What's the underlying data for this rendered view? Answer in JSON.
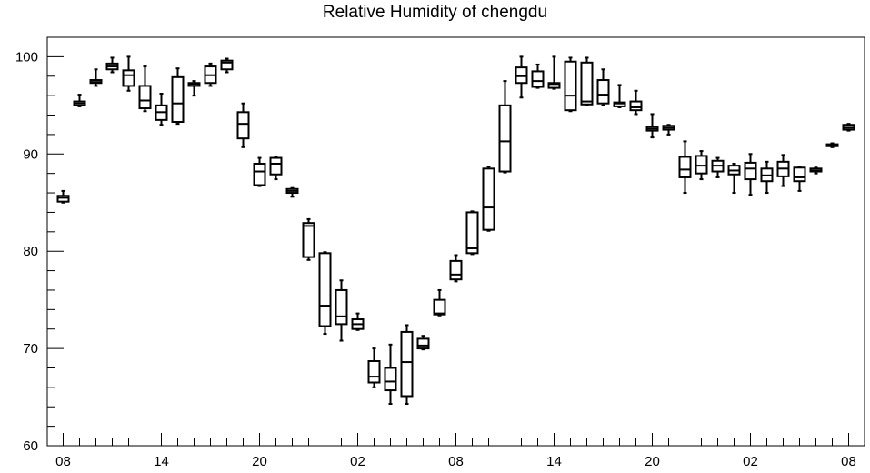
{
  "chart_data": {
    "type": "boxplot",
    "title": "Relative Humidity of chengdu",
    "xlabel": "",
    "ylabel": "",
    "ylim": [
      60,
      102
    ],
    "y_ticks": [
      60,
      70,
      80,
      90,
      100
    ],
    "x_ticks": [
      {
        "index": 0,
        "label": "08"
      },
      {
        "index": 6,
        "label": "14"
      },
      {
        "index": 12,
        "label": "20"
      },
      {
        "index": 18,
        "label": "02"
      },
      {
        "index": 24,
        "label": "08"
      },
      {
        "index": 30,
        "label": "14"
      },
      {
        "index": 36,
        "label": "20"
      },
      {
        "index": 42,
        "label": "02"
      },
      {
        "index": 48,
        "label": "08"
      }
    ],
    "grid": false,
    "boxes": [
      {
        "i": 0,
        "min": 85.0,
        "q1": 85.1,
        "median": 85.5,
        "q3": 85.7,
        "max": 86.2
      },
      {
        "i": 1,
        "min": 94.9,
        "q1": 95.0,
        "median": 95.2,
        "q3": 95.4,
        "max": 96.1
      },
      {
        "i": 2,
        "min": 97.0,
        "q1": 97.3,
        "median": 97.4,
        "q3": 97.6,
        "max": 98.7
      },
      {
        "i": 3,
        "min": 98.4,
        "q1": 98.7,
        "median": 99.0,
        "q3": 99.3,
        "max": 99.9
      },
      {
        "i": 4,
        "min": 96.5,
        "q1": 97.0,
        "median": 98.1,
        "q3": 98.6,
        "max": 100.0
      },
      {
        "i": 5,
        "min": 94.4,
        "q1": 94.7,
        "median": 95.5,
        "q3": 97.0,
        "max": 99.0
      },
      {
        "i": 6,
        "min": 93.0,
        "q1": 93.5,
        "median": 94.3,
        "q3": 95.0,
        "max": 96.2
      },
      {
        "i": 7,
        "min": 93.1,
        "q1": 93.3,
        "median": 95.2,
        "q3": 97.9,
        "max": 98.8
      },
      {
        "i": 8,
        "min": 96.0,
        "q1": 97.0,
        "median": 97.2,
        "q3": 97.3,
        "max": 97.5
      },
      {
        "i": 9,
        "min": 97.0,
        "q1": 97.3,
        "median": 98.1,
        "q3": 99.0,
        "max": 99.3
      },
      {
        "i": 10,
        "min": 98.4,
        "q1": 98.7,
        "median": 99.4,
        "q3": 99.6,
        "max": 99.8
      },
      {
        "i": 11,
        "min": 90.7,
        "q1": 91.6,
        "median": 93.1,
        "q3": 94.3,
        "max": 95.2
      },
      {
        "i": 12,
        "min": 86.7,
        "q1": 86.8,
        "median": 88.2,
        "q3": 89.0,
        "max": 89.6
      },
      {
        "i": 13,
        "min": 87.4,
        "q1": 87.9,
        "median": 89.0,
        "q3": 89.6,
        "max": 89.7
      },
      {
        "i": 14,
        "min": 85.6,
        "q1": 86.0,
        "median": 86.2,
        "q3": 86.4,
        "max": 86.5
      },
      {
        "i": 15,
        "min": 79.1,
        "q1": 79.4,
        "median": 82.6,
        "q3": 82.9,
        "max": 83.3
      },
      {
        "i": 16,
        "min": 71.5,
        "q1": 72.3,
        "median": 74.4,
        "q3": 79.8,
        "max": 79.9
      },
      {
        "i": 17,
        "min": 70.8,
        "q1": 72.5,
        "median": 73.3,
        "q3": 76.0,
        "max": 77.0
      },
      {
        "i": 18,
        "min": 71.9,
        "q1": 72.0,
        "median": 72.5,
        "q3": 73.0,
        "max": 73.6
      },
      {
        "i": 19,
        "min": 66.0,
        "q1": 66.5,
        "median": 67.1,
        "q3": 68.7,
        "max": 70.0
      },
      {
        "i": 20,
        "min": 64.3,
        "q1": 65.7,
        "median": 66.6,
        "q3": 68.0,
        "max": 70.4
      },
      {
        "i": 21,
        "min": 64.3,
        "q1": 65.1,
        "median": 68.6,
        "q3": 71.7,
        "max": 72.4
      },
      {
        "i": 22,
        "min": 69.9,
        "q1": 70.0,
        "median": 70.3,
        "q3": 71.0,
        "max": 71.3
      },
      {
        "i": 23,
        "min": 73.4,
        "q1": 73.5,
        "median": 73.6,
        "q3": 75.0,
        "max": 76.0
      },
      {
        "i": 24,
        "min": 76.9,
        "q1": 77.1,
        "median": 77.6,
        "q3": 79.0,
        "max": 79.6
      },
      {
        "i": 25,
        "min": 79.7,
        "q1": 79.8,
        "median": 80.3,
        "q3": 84.0,
        "max": 84.1
      },
      {
        "i": 26,
        "min": 82.1,
        "q1": 82.2,
        "median": 84.5,
        "q3": 88.5,
        "max": 88.7
      },
      {
        "i": 27,
        "min": 88.1,
        "q1": 88.2,
        "median": 91.3,
        "q3": 95.0,
        "max": 97.5
      },
      {
        "i": 28,
        "min": 95.8,
        "q1": 97.3,
        "median": 98.0,
        "q3": 98.9,
        "max": 100.0
      },
      {
        "i": 29,
        "min": 96.8,
        "q1": 96.9,
        "median": 97.5,
        "q3": 98.5,
        "max": 99.2
      },
      {
        "i": 30,
        "min": 96.7,
        "q1": 96.8,
        "median": 97.2,
        "q3": 97.3,
        "max": 100.0
      },
      {
        "i": 31,
        "min": 94.4,
        "q1": 94.5,
        "median": 96.0,
        "q3": 99.5,
        "max": 99.9
      },
      {
        "i": 32,
        "min": 95.0,
        "q1": 95.1,
        "median": 95.4,
        "q3": 99.4,
        "max": 99.9
      },
      {
        "i": 33,
        "min": 95.0,
        "q1": 95.2,
        "median": 96.1,
        "q3": 97.6,
        "max": 98.7
      },
      {
        "i": 34,
        "min": 94.8,
        "q1": 94.9,
        "median": 95.2,
        "q3": 95.3,
        "max": 97.1
      },
      {
        "i": 35,
        "min": 94.1,
        "q1": 94.5,
        "median": 94.8,
        "q3": 95.4,
        "max": 96.5
      },
      {
        "i": 36,
        "min": 91.7,
        "q1": 92.4,
        "median": 92.6,
        "q3": 92.8,
        "max": 94.1
      },
      {
        "i": 37,
        "min": 92.0,
        "q1": 92.5,
        "median": 92.7,
        "q3": 92.9,
        "max": 93.0
      },
      {
        "i": 38,
        "min": 86.0,
        "q1": 87.6,
        "median": 88.4,
        "q3": 89.7,
        "max": 91.3
      },
      {
        "i": 39,
        "min": 87.4,
        "q1": 88.0,
        "median": 88.8,
        "q3": 89.8,
        "max": 90.3
      },
      {
        "i": 40,
        "min": 87.6,
        "q1": 88.2,
        "median": 88.8,
        "q3": 89.3,
        "max": 89.6
      },
      {
        "i": 41,
        "min": 86.0,
        "q1": 87.9,
        "median": 88.3,
        "q3": 88.8,
        "max": 89.0
      },
      {
        "i": 42,
        "min": 85.8,
        "q1": 87.4,
        "median": 88.5,
        "q3": 89.1,
        "max": 90.0
      },
      {
        "i": 43,
        "min": 86.0,
        "q1": 87.2,
        "median": 87.8,
        "q3": 88.5,
        "max": 89.2
      },
      {
        "i": 44,
        "min": 86.7,
        "q1": 87.7,
        "median": 88.5,
        "q3": 89.2,
        "max": 89.9
      },
      {
        "i": 45,
        "min": 86.2,
        "q1": 87.2,
        "median": 87.6,
        "q3": 88.6,
        "max": 88.7
      },
      {
        "i": 46,
        "min": 88.0,
        "q1": 88.2,
        "median": 88.3,
        "q3": 88.5,
        "max": 88.6
      },
      {
        "i": 47,
        "min": 90.7,
        "q1": 90.8,
        "median": 90.9,
        "q3": 91.0,
        "max": 91.1
      },
      {
        "i": 48,
        "min": 92.4,
        "q1": 92.5,
        "median": 92.7,
        "q3": 93.0,
        "max": 93.1
      }
    ]
  },
  "colors": {
    "axis": "#000000",
    "box_stroke": "#000000",
    "background": "#ffffff"
  }
}
